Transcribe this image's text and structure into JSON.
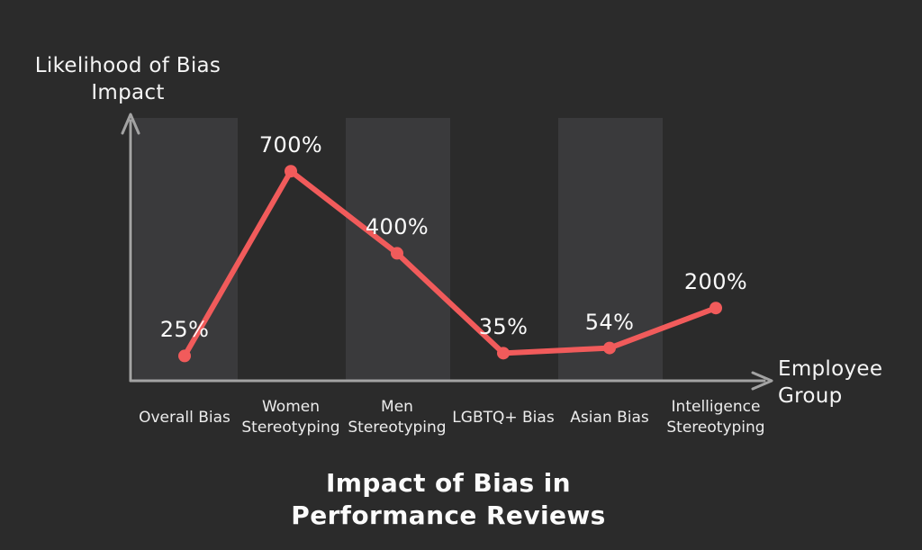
{
  "page": {
    "background": "#2b2b2b"
  },
  "chart_data": {
    "type": "line",
    "title": "Impact of Bias in Performance Reviews",
    "title_lines": [
      "Impact of Bias in",
      "Performance Reviews"
    ],
    "ylabel": "Likelihood of Bias Impact",
    "ylabel_lines": [
      "Likelihood of Bias",
      "Impact"
    ],
    "xlabel": "Employee Group",
    "xlabel_lines": [
      "Employee",
      "Group"
    ],
    "categories": [
      "Overall Bias",
      "Women Stereotyping",
      "Men Stereotyping",
      "LGBTQ+ Bias",
      "Asian Bias",
      "Intelligence Stereotyping"
    ],
    "values": [
      25,
      700,
      400,
      35,
      54,
      200
    ],
    "point_labels": [
      "25%",
      "700%",
      "400%",
      "35%",
      "54%",
      "200%"
    ],
    "shaded_category_indices": [
      0,
      2,
      4
    ],
    "legend": false,
    "grid": false,
    "axis_ticks": "none",
    "colors": {
      "background": "#2b2b2b",
      "band": "#3a3a3c",
      "line": "#f15b5b",
      "marker": "#f15b5b",
      "axis": "#a3a3a3",
      "label_text": "#fafafa",
      "category_text": "#ececec"
    }
  }
}
